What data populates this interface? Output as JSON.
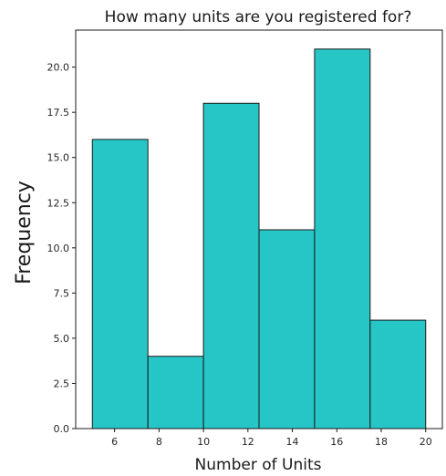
{
  "chart_data": {
    "type": "bar",
    "title": "How many units are you registered for?",
    "xlabel": "Number of Units",
    "ylabel": "Frequency",
    "bins": [
      {
        "x0": 5.0,
        "x1": 7.5,
        "value": 16
      },
      {
        "x0": 7.5,
        "x1": 10.0,
        "value": 4
      },
      {
        "x0": 10.0,
        "x1": 12.5,
        "value": 18
      },
      {
        "x0": 12.5,
        "x1": 15.0,
        "value": 11
      },
      {
        "x0": 15.0,
        "x1": 17.5,
        "value": 21
      },
      {
        "x0": 17.5,
        "x1": 20.0,
        "value": 6
      }
    ],
    "xlim": [
      4.25,
      20.75
    ],
    "ylim": [
      0,
      22.05
    ],
    "xticks": [
      6,
      8,
      10,
      12,
      14,
      16,
      18,
      20
    ],
    "xtick_labels": [
      "6",
      "8",
      "10",
      "12",
      "14",
      "16",
      "18",
      "20"
    ],
    "yticks": [
      0,
      2.5,
      5,
      7.5,
      10,
      12.5,
      15,
      17.5,
      20
    ],
    "ytick_labels": [
      "0.0",
      "2.5",
      "5.0",
      "7.5",
      "10.0",
      "12.5",
      "15.0",
      "17.5",
      "20.0"
    ],
    "grid": false,
    "bar_color": "#26c6c6",
    "edge_color": "#1a1a1a"
  }
}
